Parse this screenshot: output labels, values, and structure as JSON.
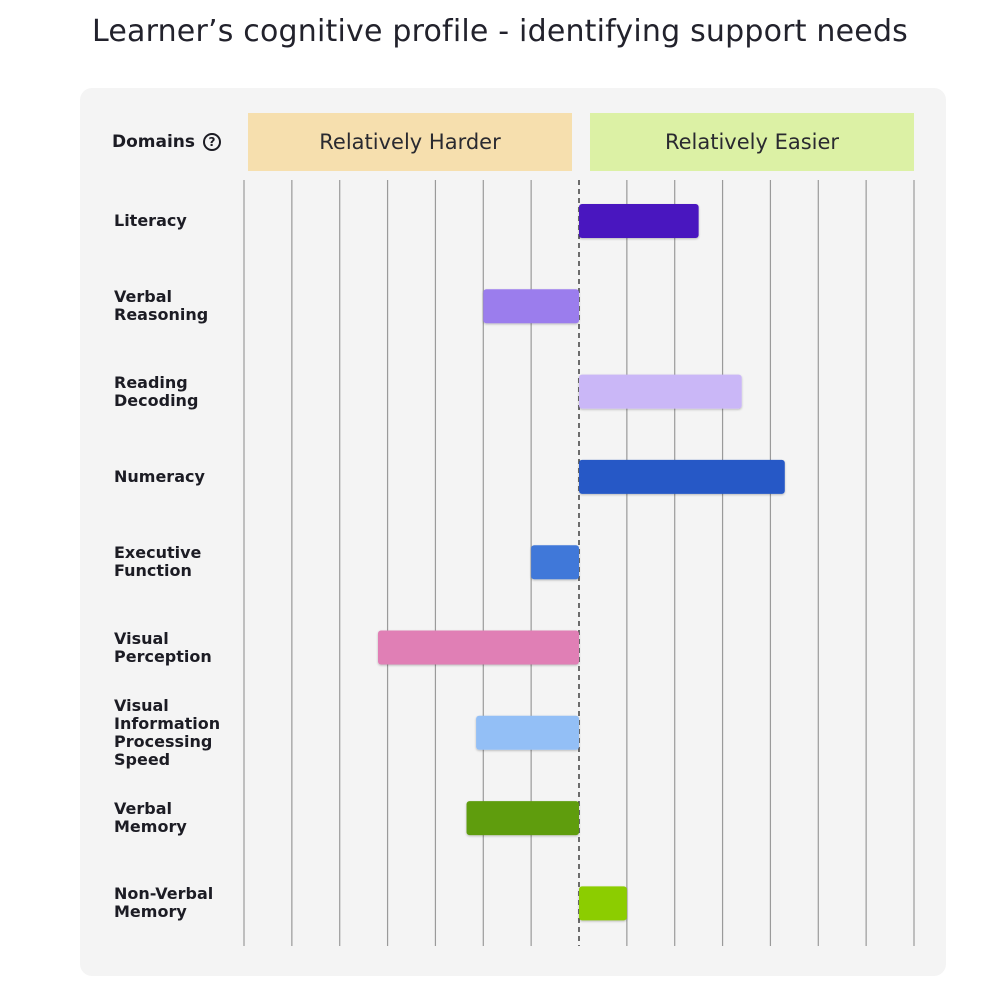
{
  "title": "Learner’s cognitive profile - identifying support needs",
  "header": {
    "domains_label": "Domains",
    "help_icon": "question-circle-icon"
  },
  "bands": {
    "harder_label": "Relatively Harder",
    "easier_label": "Relatively Easier",
    "harder_color": "#f6dfae",
    "easier_color": "#dcf1a5"
  },
  "chart_data": {
    "type": "bar",
    "orientation": "horizontal",
    "diverging": true,
    "center_value": 0,
    "xlim": [
      -7,
      7
    ],
    "grid": true,
    "categories": [
      "Literacy",
      "Verbal\nReasoning",
      "Reading\nDecoding",
      "Numeracy",
      "Executive\nFunction",
      "Visual\nPerception",
      "Visual\nInformation\nProcessing\nSpeed",
      "Verbal\nMemory",
      "Non-Verbal\nMemory"
    ],
    "values": [
      2.5,
      -2.0,
      3.4,
      4.3,
      -1.0,
      -4.2,
      -2.15,
      -2.35,
      1.0
    ],
    "colors": [
      "#4a19bf",
      "#9b7ded",
      "#cab7f7",
      "#2558c6",
      "#3f78d9",
      "#e07fb5",
      "#93bff6",
      "#5f9d0d",
      "#8ccd06"
    ],
    "xlabel": "",
    "ylabel": ""
  }
}
